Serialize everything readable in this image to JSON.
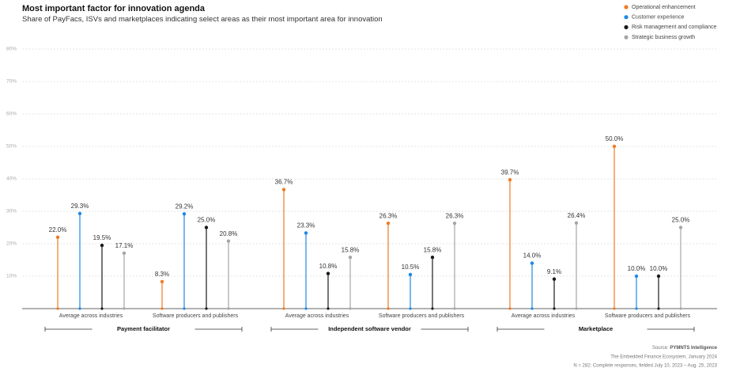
{
  "chart_data": {
    "type": "lollipop",
    "title": "Most important factor for innovation agenda",
    "subtitle": "Share of PayFacs, ISVs and marketplaces indicating select areas as their most important area for innovation",
    "groups": [
      "Payment facilitator",
      "Independent software vendor",
      "Marketplace"
    ],
    "categories": [
      "Average across industries",
      "Software producers and publishers",
      "Average across industries",
      "Software producers and publishers",
      "Average across industries",
      "Software producers and publishers"
    ],
    "series": [
      {
        "name": "Operational enhancement",
        "color": "#f07a22",
        "values": [
          22.0,
          8.3,
          36.7,
          26.3,
          39.7,
          50.0
        ],
        "value_labels": [
          "22.0%",
          "8.3%",
          "36.7%",
          "26.3%",
          "39.7%",
          "50.0%"
        ]
      },
      {
        "name": "Customer experience",
        "color": "#1e88e5",
        "values": [
          29.3,
          29.2,
          23.3,
          10.5,
          14.0,
          10.0
        ],
        "value_labels": [
          "29.3%",
          "29.2%",
          "23.3%",
          "10.5%",
          "14.0%",
          "10.0%"
        ]
      },
      {
        "name": "Risk management and compliance",
        "color": "#1a1a1a",
        "values": [
          19.5,
          25.0,
          10.8,
          15.8,
          9.1,
          10.0
        ],
        "value_labels": [
          "19.5%",
          "25.0%",
          "10.8%",
          "15.8%",
          "9.1%",
          "10.0%"
        ]
      },
      {
        "name": "Strategic business growth",
        "color": "#a6a6a6",
        "values": [
          17.1,
          20.8,
          15.8,
          26.3,
          26.4,
          25.0
        ],
        "value_labels": [
          "17.1%",
          "20.8%",
          "15.8%",
          "26.3%",
          "26.4%",
          "25.0%"
        ]
      }
    ],
    "ylim": [
      0,
      80
    ],
    "yticks": [
      {
        "value": 10,
        "label": "10%"
      },
      {
        "value": 20,
        "label": "20%"
      },
      {
        "value": 30,
        "label": "30%"
      },
      {
        "value": 40,
        "label": "40%"
      },
      {
        "value": 50,
        "label": "50%"
      },
      {
        "value": 60,
        "label": "60%"
      },
      {
        "value": 70,
        "label": "70%"
      },
      {
        "value": 80,
        "label": "80%"
      }
    ],
    "grid": true,
    "legend": "top-right",
    "source_prefix": "Source:",
    "source_name": "PYMNTS Intelligence",
    "notes": [
      "The Embedded Finance Ecosystem, January 2024",
      "N = 282: Complete responses, fielded July 10, 2023 – Aug. 25, 2023"
    ]
  }
}
